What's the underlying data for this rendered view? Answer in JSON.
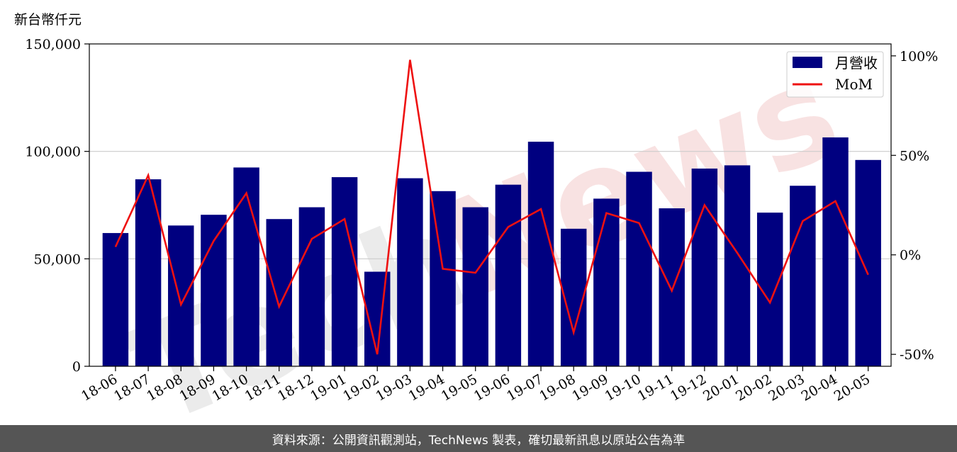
{
  "chart_data": {
    "type": "bar",
    "left_axis_unit": "新台幣仟元",
    "categories": [
      "18-06",
      "18-07",
      "18-08",
      "18-09",
      "18-10",
      "18-11",
      "18-12",
      "19-01",
      "19-02",
      "19-03",
      "19-04",
      "19-05",
      "19-06",
      "19-07",
      "19-08",
      "19-09",
      "19-10",
      "19-11",
      "19-12",
      "20-01",
      "20-02",
      "20-03",
      "20-04",
      "20-05"
    ],
    "series": [
      {
        "name": "月營收",
        "kind": "bar",
        "axis": "left",
        "color": "#000080",
        "values": [
          62000,
          87000,
          65500,
          70500,
          92500,
          68500,
          74000,
          88000,
          44000,
          87500,
          81500,
          74000,
          84500,
          104500,
          64000,
          78000,
          90500,
          73500,
          92000,
          93500,
          71500,
          84000,
          106500,
          96000
        ]
      },
      {
        "name": "MoM",
        "kind": "line",
        "axis": "right",
        "color": "#ee1111",
        "values": [
          4,
          40,
          -25,
          7,
          31,
          -26,
          8,
          18,
          -50,
          98,
          -7,
          -9,
          14,
          23,
          -39,
          21,
          16,
          -18,
          25,
          1,
          -24,
          17,
          27,
          -10
        ]
      }
    ],
    "left_axis": {
      "ylim": [
        0,
        150000
      ],
      "ticks": [
        0,
        50000,
        100000,
        150000
      ],
      "tick_labels": [
        "0",
        "50,000",
        "100,000",
        "150,000"
      ]
    },
    "right_axis": {
      "ylim": [
        -56,
        106
      ],
      "ticks": [
        -50,
        0,
        50,
        100
      ],
      "tick_labels": [
        "-50%",
        "0%",
        "50%",
        "100%"
      ]
    },
    "grid": "horizontal at left-axis ticks",
    "legend_position": "top-right",
    "xlabel": "",
    "ylabel": ""
  },
  "watermark": "TechNews",
  "footer": {
    "source_text": "資料來源：公開資訊觀測站，TechNews 製表，確切最新訊息以原站公告為準"
  }
}
